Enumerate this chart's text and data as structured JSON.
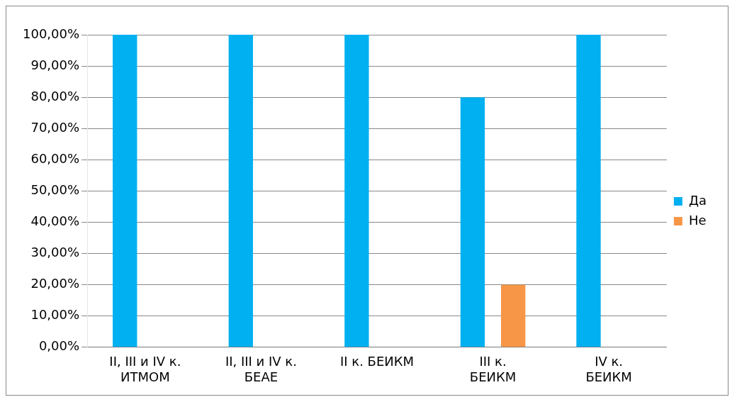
{
  "chart_data": {
    "type": "bar",
    "categories": [
      "II, III и IV к.\nИТМОМ",
      "II, III и IV к.\nБЕАЕ",
      "II к. БЕИКМ",
      "III к.\nБЕИКМ",
      "IV к.\nБЕИКМ"
    ],
    "series": [
      {
        "name": "Да",
        "color": "#00b0f0",
        "values": [
          100,
          100,
          100,
          80,
          100
        ]
      },
      {
        "name": "Не",
        "color": "#f79646",
        "values": [
          0,
          0,
          0,
          20,
          0
        ]
      }
    ],
    "ylim": [
      0,
      100
    ],
    "yticks": [
      {
        "value": 0,
        "label": "0,00%"
      },
      {
        "value": 10,
        "label": "10,00%"
      },
      {
        "value": 20,
        "label": "20,00%"
      },
      {
        "value": 30,
        "label": "30,00%"
      },
      {
        "value": 40,
        "label": "40,00%"
      },
      {
        "value": 50,
        "label": "50,00%"
      },
      {
        "value": 60,
        "label": "60,00%"
      },
      {
        "value": 70,
        "label": "70,00%"
      },
      {
        "value": 80,
        "label": "80,00%"
      },
      {
        "value": 90,
        "label": "90,00%"
      },
      {
        "value": 100,
        "label": "100,00%"
      }
    ],
    "grid": "y",
    "legend": "right"
  }
}
